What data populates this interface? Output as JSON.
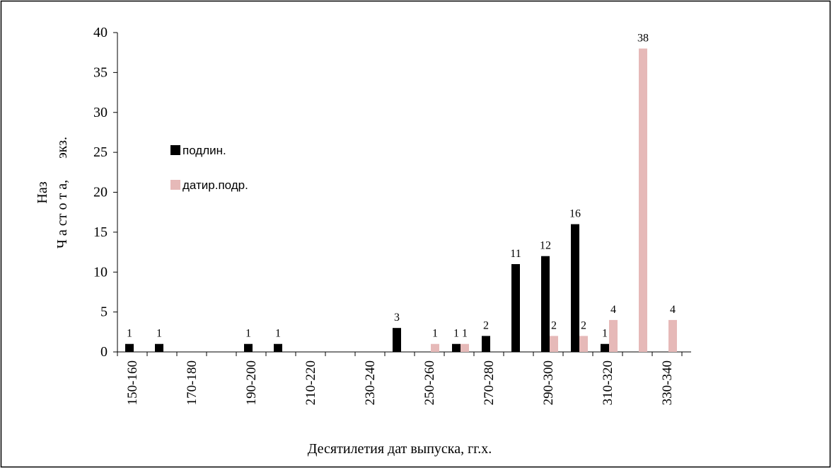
{
  "chart_data": {
    "type": "bar",
    "categories": [
      "150-160",
      null,
      "170-180",
      null,
      "190-200",
      null,
      "210-220",
      null,
      "230-240",
      null,
      "250-260",
      null,
      "270-280",
      null,
      "290-300",
      null,
      "310-320",
      null,
      "330-340"
    ],
    "series": [
      {
        "name": "подлин.",
        "color": "#000000",
        "values": [
          1,
          1,
          0,
          0,
          1,
          1,
          0,
          0,
          0,
          3,
          0,
          1,
          2,
          11,
          12,
          16,
          1,
          0,
          0
        ]
      },
      {
        "name": "датир.подр.",
        "color": "#e6b9b8",
        "values": [
          0,
          0,
          0,
          0,
          0,
          0,
          0,
          0,
          0,
          0,
          1,
          1,
          0,
          0,
          2,
          2,
          4,
          38,
          4
        ]
      }
    ],
    "xlabel": "Десятилетия дат выпуска,   гг.х.",
    "ylabel": [
      "Наз",
      "Ч а ст о т а,      экз."
    ],
    "ylim": [
      0,
      40
    ],
    "yticks": [
      0,
      5,
      10,
      15,
      20,
      25,
      30,
      35,
      40
    ],
    "legend": "left"
  }
}
